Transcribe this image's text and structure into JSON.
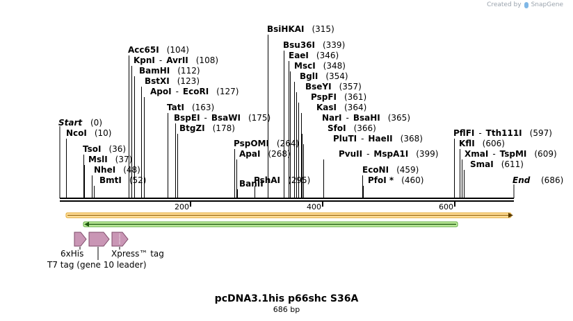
{
  "branding": {
    "created_by": "Created by",
    "product": "SnapGene"
  },
  "map": {
    "title": "pcDNA3.1his p66shc S36A",
    "length_label": "686 bp",
    "total_bp": 686,
    "start": {
      "label": "Start",
      "pos": 0
    },
    "end": {
      "label": "End",
      "pos": 686
    }
  },
  "sites": [
    {
      "id": "ncoi",
      "names": [
        "NcoI"
      ],
      "pos": "10"
    },
    {
      "id": "tsoi",
      "names": [
        "TsoI"
      ],
      "pos": "36"
    },
    {
      "id": "msli",
      "names": [
        "MslI"
      ],
      "pos": "37"
    },
    {
      "id": "nhei",
      "names": [
        "NheI"
      ],
      "pos": "48"
    },
    {
      "id": "bmti",
      "names": [
        "BmtI"
      ],
      "pos": "52"
    },
    {
      "id": "acc65i",
      "names": [
        "Acc65I"
      ],
      "pos": "104"
    },
    {
      "id": "kpni-avrii",
      "names": [
        "KpnI",
        "AvrII"
      ],
      "pos": "108"
    },
    {
      "id": "bamhi",
      "names": [
        "BamHI"
      ],
      "pos": "112"
    },
    {
      "id": "bstxi",
      "names": [
        "BstXI"
      ],
      "pos": "123"
    },
    {
      "id": "apoi-ecori",
      "names": [
        "ApoI",
        "EcoRI"
      ],
      "pos": "127"
    },
    {
      "id": "tati",
      "names": [
        "TatI"
      ],
      "pos": "163"
    },
    {
      "id": "bspei-bsawi",
      "names": [
        "BspEI",
        "BsaWI"
      ],
      "pos": "175"
    },
    {
      "id": "btgzi",
      "names": [
        "BtgZI"
      ],
      "pos": "178"
    },
    {
      "id": "pspomi",
      "names": [
        "PspOMI"
      ],
      "pos": "264"
    },
    {
      "id": "apai",
      "names": [
        "ApaI"
      ],
      "pos": "268"
    },
    {
      "id": "banii",
      "names": [
        "BanII"
      ],
      "pos": ""
    },
    {
      "id": "pshai",
      "names": [
        "PshAI"
      ],
      "pos": "295"
    },
    {
      "id": "bsihkai",
      "names": [
        "BsiHKAI"
      ],
      "pos": "315"
    },
    {
      "id": "bsu36i",
      "names": [
        "Bsu36I"
      ],
      "pos": "339"
    },
    {
      "id": "eaei",
      "names": [
        "EaeI"
      ],
      "pos": "346"
    },
    {
      "id": "msci",
      "names": [
        "MscI"
      ],
      "pos": "348"
    },
    {
      "id": "bgli",
      "names": [
        "BglI"
      ],
      "pos": "354"
    },
    {
      "id": "bseyi",
      "names": [
        "BseYI"
      ],
      "pos": "357"
    },
    {
      "id": "pspfi",
      "names": [
        "PspFI"
      ],
      "pos": "361"
    },
    {
      "id": "kasi",
      "names": [
        "KasI"
      ],
      "pos": "364"
    },
    {
      "id": "nari-bsahi",
      "names": [
        "NarI",
        "BsaHI"
      ],
      "pos": "365"
    },
    {
      "id": "sfoi",
      "names": [
        "SfoI"
      ],
      "pos": "366"
    },
    {
      "id": "pluti-haeii",
      "names": [
        "PluTI",
        "HaeII"
      ],
      "pos": "368"
    },
    {
      "id": "pvuii-mspa1i",
      "names": [
        "PvuII",
        "MspA1I"
      ],
      "pos": "399"
    },
    {
      "id": "econi",
      "names": [
        "EcoNI"
      ],
      "pos": "459"
    },
    {
      "id": "pfoi",
      "names": [
        "PfoI *"
      ],
      "pos": "460"
    },
    {
      "id": "pflfi-tth111i",
      "names": [
        "PflFI",
        "Tth111I"
      ],
      "pos": "597"
    },
    {
      "id": "kfli",
      "names": [
        "KflI"
      ],
      "pos": "606"
    },
    {
      "id": "xmai-tspmi",
      "names": [
        "XmaI",
        "TspMI"
      ],
      "pos": "609"
    },
    {
      "id": "smai",
      "names": [
        "SmaI"
      ],
      "pos": "611"
    }
  ],
  "ruler": {
    "ticks": [
      "200",
      "400",
      "600"
    ]
  },
  "features": [
    {
      "id": "his-tag",
      "label": "6xHis"
    },
    {
      "id": "t7-tag",
      "label": "T7 tag (gene 10 leader)"
    },
    {
      "id": "xpress-tag",
      "label": "Xpress™ tag"
    }
  ],
  "colors": {
    "orange_fill": "#ffdd99",
    "orange_edge": "#e0a830",
    "green_fill": "#c6f2a4",
    "green_edge": "#5aa838",
    "tag_fill": "#c996b5",
    "tag_edge": "#7d4a68",
    "ink": "#000000"
  }
}
